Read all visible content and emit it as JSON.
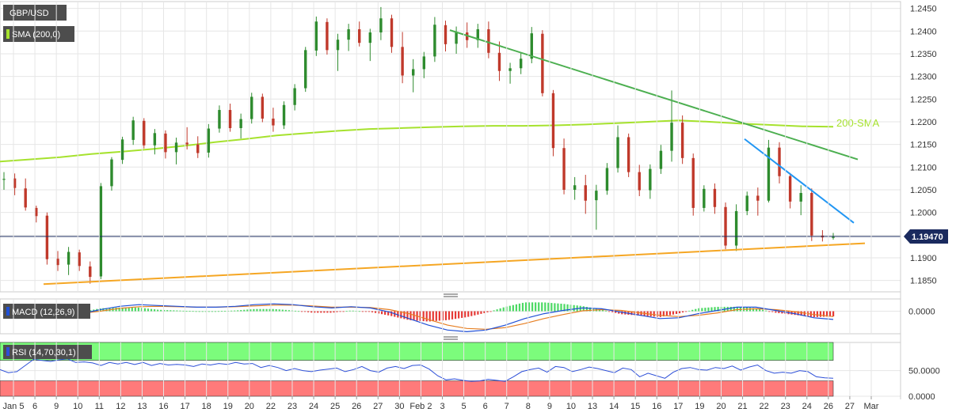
{
  "labels": {
    "symbol": "GBP/USD",
    "sma": "SMA (200,0)",
    "macd": "MACD (12,26,9)",
    "rsi": "RSI (14,70,30,1)",
    "sma_annotation": "200-SMA",
    "last_price": "1.19470"
  },
  "colors": {
    "up": "#2e8b2e",
    "down": "#c0392b",
    "sma": "#a6e22e",
    "resistance": "#4caf50",
    "wedge": "#2196f3",
    "support": "#f5a623",
    "macd_line": "#1f4fd6",
    "signal_line": "#e67e22",
    "rsi_line": "#2d4fd8",
    "overbought": "#7cfc7c",
    "oversold": "#ff7a7a"
  },
  "x_ticks": [
    "Jan 5",
    "6",
    "9",
    "10",
    "11",
    "12",
    "13",
    "16",
    "17",
    "18",
    "19",
    "20",
    "22",
    "23",
    "24",
    "25",
    "26",
    "27",
    "30",
    "Feb 2",
    "3",
    "5",
    "6",
    "7",
    "8",
    "9",
    "10",
    "13",
    "14",
    "15",
    "16",
    "17",
    "19",
    "20",
    "21",
    "22",
    "23",
    "24",
    "26",
    "27",
    "Mar"
  ],
  "chart_data": [
    {
      "type": "candlestick",
      "title": "GBP/USD",
      "price_ticks": [
        "1.2450",
        "1.2400",
        "1.2350",
        "1.2300",
        "1.2250",
        "1.2200",
        "1.2150",
        "1.2100",
        "1.2050",
        "1.2000",
        "1.1950",
        "1.1900",
        "1.1850"
      ],
      "ylim": [
        1.1825,
        1.2465
      ],
      "last_price": 1.1947,
      "sma_200": [
        1.2112,
        1.2117,
        1.2122,
        1.2129,
        1.2134,
        1.214,
        1.2147,
        1.2155,
        1.2162,
        1.217,
        1.2175,
        1.218,
        1.2184,
        1.2186,
        1.2188,
        1.219,
        1.2191,
        1.2191,
        1.2192,
        1.2194,
        1.2197,
        1.22,
        1.2203,
        1.22,
        1.2196,
        1.2193,
        1.219,
        1.2189
      ],
      "trendlines": [
        {
          "from": [
            1.2402
          ],
          "to": [
            1.2117
          ]
        },
        {
          "from": [
            1.2162
          ],
          "to": [
            1.1977
          ]
        },
        {
          "from": [
            1.1842
          ],
          "to": [
            1.1932
          ]
        }
      ],
      "candles": [
        [
          1.2072,
          1.2089,
          1.205,
          1.2074
        ],
        [
          1.2075,
          1.2086,
          1.2038,
          1.2054
        ],
        [
          1.2053,
          1.2075,
          1.2004,
          1.2011
        ],
        [
          1.201,
          1.2015,
          1.1978,
          1.1992
        ],
        [
          1.1993,
          1.2,
          1.1885,
          1.1897
        ],
        [
          1.1898,
          1.1915,
          1.1871,
          1.1884
        ],
        [
          1.1885,
          1.1924,
          1.1862,
          1.1913
        ],
        [
          1.1912,
          1.1918,
          1.1871,
          1.1882
        ],
        [
          1.1881,
          1.1892,
          1.1843,
          1.1858
        ],
        [
          1.1859,
          1.2065,
          1.1853,
          1.2058
        ],
        [
          1.2058,
          1.2122,
          1.2048,
          1.2117
        ],
        [
          1.2116,
          1.2167,
          1.2107,
          1.2161
        ],
        [
          1.216,
          1.2211,
          1.2149,
          1.2203
        ],
        [
          1.2202,
          1.2208,
          1.2141,
          1.2148
        ],
        [
          1.2148,
          1.2184,
          1.2128,
          1.2175
        ],
        [
          1.2174,
          1.2181,
          1.2119,
          1.2133
        ],
        [
          1.2133,
          1.2165,
          1.2106,
          1.2154
        ],
        [
          1.2154,
          1.2188,
          1.2139,
          1.215
        ],
        [
          1.215,
          1.2168,
          1.212,
          1.2131
        ],
        [
          1.2132,
          1.2195,
          1.2121,
          1.2185
        ],
        [
          1.2185,
          1.2236,
          1.2176,
          1.2226
        ],
        [
          1.2226,
          1.224,
          1.2178,
          1.2186
        ],
        [
          1.2186,
          1.2218,
          1.2163,
          1.2206
        ],
        [
          1.2206,
          1.2264,
          1.2196,
          1.2255
        ],
        [
          1.2255,
          1.2262,
          1.2199,
          1.2207
        ],
        [
          1.2207,
          1.2231,
          1.2178,
          1.2192
        ],
        [
          1.2192,
          1.2245,
          1.2184,
          1.2237
        ],
        [
          1.2237,
          1.2283,
          1.2225,
          1.2274
        ],
        [
          1.2274,
          1.2365,
          1.2266,
          1.2358
        ],
        [
          1.2357,
          1.2432,
          1.2345,
          1.2421
        ],
        [
          1.242,
          1.2428,
          1.2348,
          1.2358
        ],
        [
          1.2358,
          1.2394,
          1.2312,
          1.2381
        ],
        [
          1.2381,
          1.2416,
          1.2356,
          1.2404
        ],
        [
          1.2404,
          1.2421,
          1.2366,
          1.2374
        ],
        [
          1.2374,
          1.2405,
          1.2334,
          1.2397
        ],
        [
          1.2397,
          1.2453,
          1.238,
          1.2428
        ],
        [
          1.2428,
          1.2436,
          1.2352,
          1.2365
        ],
        [
          1.2365,
          1.2398,
          1.2285,
          1.2302
        ],
        [
          1.2302,
          1.2338,
          1.2265,
          1.2316
        ],
        [
          1.2316,
          1.2354,
          1.2296,
          1.2344
        ],
        [
          1.2344,
          1.2431,
          1.2332,
          1.2414
        ],
        [
          1.2413,
          1.2423,
          1.2355,
          1.2371
        ],
        [
          1.2372,
          1.241,
          1.235,
          1.2397
        ],
        [
          1.2397,
          1.2419,
          1.2363,
          1.238
        ],
        [
          1.238,
          1.2416,
          1.2363,
          1.2404
        ],
        [
          1.2404,
          1.2421,
          1.234,
          1.2352
        ],
        [
          1.2352,
          1.2377,
          1.229,
          1.2312
        ],
        [
          1.2312,
          1.233,
          1.2284,
          1.2318
        ],
        [
          1.2318,
          1.2352,
          1.2305,
          1.2339
        ],
        [
          1.2339,
          1.2409,
          1.2329,
          1.2395
        ],
        [
          1.2394,
          1.2402,
          1.2256,
          1.2263
        ],
        [
          1.2263,
          1.227,
          1.2124,
          1.2142
        ],
        [
          1.2142,
          1.2163,
          1.204,
          1.205
        ],
        [
          1.205,
          1.2078,
          1.2028,
          1.206
        ],
        [
          1.206,
          1.2083,
          1.1997,
          1.2026
        ],
        [
          1.2027,
          1.2061,
          1.1962,
          1.2048
        ],
        [
          1.2048,
          1.2109,
          1.2039,
          1.2098
        ],
        [
          1.2098,
          1.2192,
          1.2088,
          1.2166
        ],
        [
          1.2166,
          1.2174,
          1.2078,
          1.2089
        ],
        [
          1.2089,
          1.2105,
          1.2036,
          1.2049
        ],
        [
          1.2049,
          1.2106,
          1.203,
          1.2096
        ],
        [
          1.2096,
          1.2149,
          1.2085,
          1.2136
        ],
        [
          1.2136,
          1.2269,
          1.2112,
          1.2198
        ],
        [
          1.2198,
          1.2214,
          1.2107,
          1.212
        ],
        [
          1.212,
          1.213,
          1.1993,
          1.201
        ],
        [
          1.201,
          1.206,
          1.2002,
          1.2052
        ],
        [
          1.2052,
          1.2064,
          1.1997,
          1.2012
        ],
        [
          1.2012,
          1.2022,
          1.1919,
          1.1927
        ],
        [
          1.1927,
          1.2018,
          1.1915,
          1.2003
        ],
        [
          1.2003,
          1.2046,
          1.1994,
          1.2037
        ],
        [
          1.2037,
          1.2055,
          1.1993,
          1.2026
        ],
        [
          1.2026,
          1.216,
          1.2022,
          1.2143
        ],
        [
          1.2143,
          1.2155,
          1.2064,
          1.208
        ],
        [
          1.208,
          1.2087,
          1.2009,
          1.2024
        ],
        [
          1.2024,
          1.206,
          1.1994,
          1.2043
        ],
        [
          1.2043,
          1.2053,
          1.1937,
          1.1949
        ],
        [
          1.1949,
          1.1961,
          1.1936,
          1.1945
        ],
        [
          1.1944,
          1.1955,
          1.194,
          1.1947
        ]
      ]
    },
    {
      "type": "line",
      "title": "MACD (12,26,9)",
      "ticks": [
        "0.0000"
      ],
      "ylim": [
        -0.0055,
        0.003
      ],
      "series": [
        {
          "values": [
            0.0008,
            0.0004,
            -0.0002,
            -0.0008,
            -0.0006,
            0.0004,
            0.0012,
            0.0016,
            0.0014,
            0.0012,
            0.001,
            0.001,
            0.0012,
            0.0016,
            0.0018,
            0.0016,
            0.0011,
            0.0008,
            0.0011,
            0.0008,
            -0.0002,
            -0.0018,
            -0.0034,
            -0.0046,
            -0.005,
            -0.0046,
            -0.0034,
            -0.0018,
            -0.0006,
            0.0002,
            0.0008,
            0.0006,
            -0.0002,
            -0.001,
            -0.0018,
            -0.0016,
            -0.0006,
            0.0002,
            0.001,
            0.001,
            0.0002,
            -0.0006,
            -0.0016,
            -0.002
          ]
        },
        {
          "values": [
            0.001,
            0.0007,
            0.0002,
            -0.0004,
            -0.0005,
            0.0,
            0.0007,
            0.0011,
            0.0012,
            0.0011,
            0.001,
            0.001,
            0.0011,
            0.0013,
            0.0015,
            0.0015,
            0.0013,
            0.001,
            0.001,
            0.0009,
            0.0004,
            -0.0006,
            -0.002,
            -0.0034,
            -0.0042,
            -0.0044,
            -0.004,
            -0.003,
            -0.0018,
            -0.0008,
            0.0001,
            0.0004,
            0.0002,
            -0.0004,
            -0.001,
            -0.0013,
            -0.001,
            -0.0004,
            0.0004,
            0.0006,
            0.0004,
            -0.0001,
            -0.0008,
            -0.0013
          ]
        }
      ]
    },
    {
      "type": "line",
      "title": "RSI (14,70,30,1)",
      "ticks": [
        "50.0000",
        "0.0000"
      ],
      "ylim": [
        0,
        105
      ],
      "overbought": 70,
      "oversold": 30,
      "series": [
        {
          "values": [
            52,
            46,
            48,
            60,
            72,
            70,
            68,
            71,
            73,
            66,
            67,
            65,
            60,
            66,
            63,
            66,
            62,
            66,
            60,
            64,
            61,
            62,
            61,
            58,
            63,
            61,
            64,
            62,
            66,
            63,
            64,
            56,
            60,
            56,
            50,
            54,
            50,
            48,
            51,
            53,
            55,
            48,
            52,
            58,
            50,
            47,
            55,
            58,
            54,
            60,
            61,
            53,
            40,
            32,
            34,
            31,
            29,
            30,
            33,
            31,
            29,
            38,
            48,
            52,
            55,
            47,
            58,
            56,
            48,
            52,
            57,
            54,
            50,
            46,
            55,
            52,
            38,
            45,
            40,
            35,
            47,
            54,
            56,
            52,
            51,
            56,
            54,
            59,
            51,
            57,
            61,
            50,
            45,
            47,
            45,
            50,
            48,
            38,
            36,
            35
          ]
        }
      ]
    }
  ]
}
